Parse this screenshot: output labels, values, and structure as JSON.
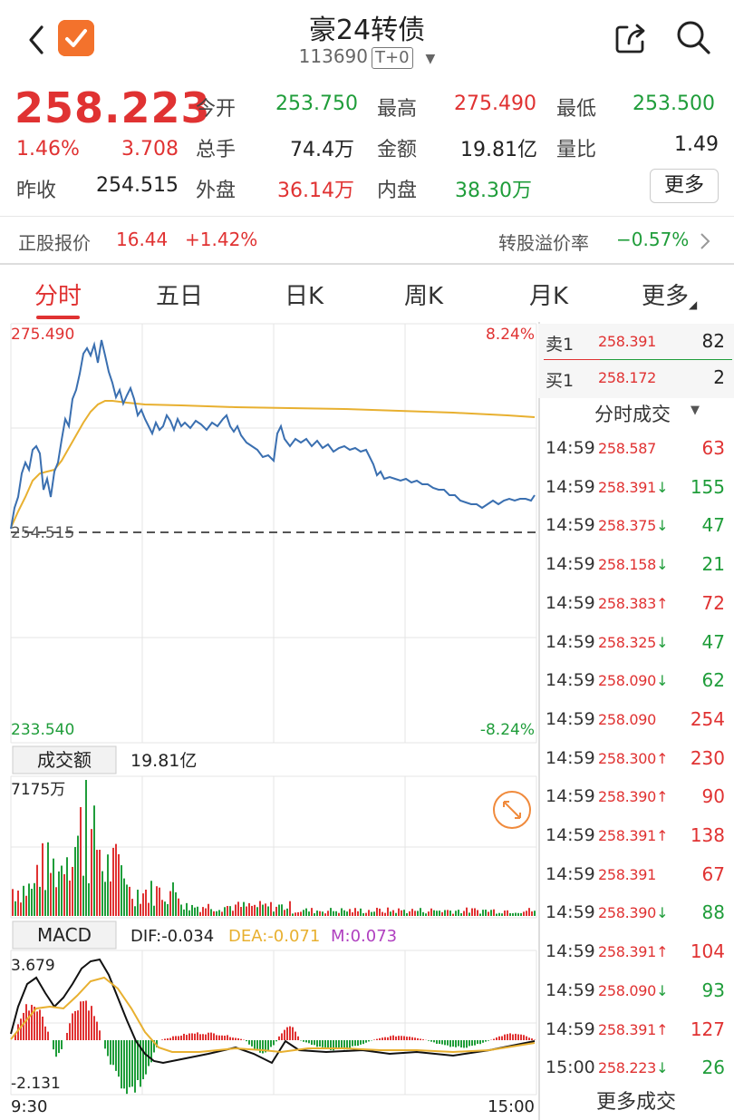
{
  "header": {
    "title": "豪24转债",
    "code": "113690",
    "tplus": "T+0"
  },
  "quote": {
    "price": "258.223",
    "change_pct": "1.46%",
    "change": "3.708",
    "prev_close_label": "昨收",
    "prev_close": "254.515",
    "open_label": "今开",
    "open": "253.750",
    "high_label": "最高",
    "high": "275.490",
    "low_label": "最低",
    "low": "253.500",
    "volume_label": "总手",
    "volume": "74.4万",
    "amount_label": "金额",
    "amount": "19.81亿",
    "vol_ratio_label": "量比",
    "vol_ratio": "1.49",
    "outer_label": "外盘",
    "outer": "36.14万",
    "inner_label": "内盘",
    "inner": "38.30万",
    "more_label": "更多"
  },
  "stock_row": {
    "label": "正股报价",
    "price": "16.44",
    "pct": "+1.42%",
    "premium_label": "转股溢价率",
    "premium": "−0.57%"
  },
  "tabs": [
    "分时",
    "五日",
    "日K",
    "周K",
    "月K",
    "更多"
  ],
  "chart": {
    "price_high": "275.490",
    "price_low": "233.540",
    "pct_high": "8.24%",
    "pct_low": "-8.24%",
    "base": "254.515",
    "amount_tab": "成交额",
    "amount_value": "19.81亿",
    "vol_max": "7175万",
    "macd_tab": "MACD",
    "dif": "DIF:-0.034",
    "dea": "DEA:-0.071",
    "m": "M:0.073",
    "macd_max": "3.679",
    "macd_min": "-2.131",
    "time_start": "9:30",
    "time_end": "15:00"
  },
  "colors": {
    "up": "#e03232",
    "down": "#1f9d3a",
    "price_line": "#3a6fb0",
    "avg_line": "#e8b030",
    "dea": "#e8b030",
    "m": "#b040c0"
  },
  "orderbook": {
    "sell_label": "卖1",
    "sell_price": "258.391",
    "sell_vol": "82",
    "buy_label": "买1",
    "buy_price": "258.172",
    "buy_vol": "2"
  },
  "trades_header": "分时成交",
  "trades_more": "更多成交",
  "trades": [
    {
      "time": "14:59",
      "price": "258.587",
      "dir": "",
      "vol": "63",
      "vc": "up"
    },
    {
      "time": "14:59",
      "price": "258.391",
      "dir": "↓",
      "vol": "155",
      "vc": "down"
    },
    {
      "time": "14:59",
      "price": "258.375",
      "dir": "↓",
      "vol": "47",
      "vc": "down"
    },
    {
      "time": "14:59",
      "price": "258.158",
      "dir": "↓",
      "vol": "21",
      "vc": "down"
    },
    {
      "time": "14:59",
      "price": "258.383",
      "dir": "↑",
      "vol": "72",
      "vc": "up"
    },
    {
      "time": "14:59",
      "price": "258.325",
      "dir": "↓",
      "vol": "47",
      "vc": "down"
    },
    {
      "time": "14:59",
      "price": "258.090",
      "dir": "↓",
      "vol": "62",
      "vc": "down"
    },
    {
      "time": "14:59",
      "price": "258.090",
      "dir": "",
      "vol": "254",
      "vc": "up"
    },
    {
      "time": "14:59",
      "price": "258.300",
      "dir": "↑",
      "vol": "230",
      "vc": "up"
    },
    {
      "time": "14:59",
      "price": "258.390",
      "dir": "↑",
      "vol": "90",
      "vc": "up"
    },
    {
      "time": "14:59",
      "price": "258.391",
      "dir": "↑",
      "vol": "138",
      "vc": "up"
    },
    {
      "time": "14:59",
      "price": "258.391",
      "dir": "",
      "vol": "67",
      "vc": "up"
    },
    {
      "time": "14:59",
      "price": "258.390",
      "dir": "↓",
      "vol": "88",
      "vc": "down"
    },
    {
      "time": "14:59",
      "price": "258.391",
      "dir": "↑",
      "vol": "104",
      "vc": "up"
    },
    {
      "time": "14:59",
      "price": "258.090",
      "dir": "↓",
      "vol": "93",
      "vc": "down"
    },
    {
      "time": "14:59",
      "price": "258.391",
      "dir": "↑",
      "vol": "127",
      "vc": "up"
    },
    {
      "time": "15:00",
      "price": "258.223",
      "dir": "↓",
      "vol": "26",
      "vc": "down"
    }
  ]
}
